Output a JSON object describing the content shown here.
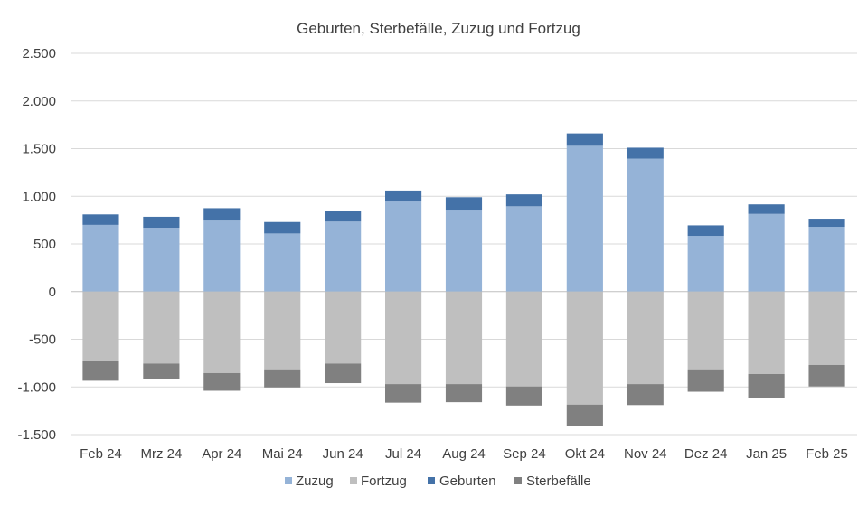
{
  "chart_data": {
    "type": "bar",
    "stacked": true,
    "title": "Geburten, Sterbefälle, Zuzug und Fortzug",
    "categories": [
      "Feb 24",
      "Mrz 24",
      "Apr 24",
      "Mai 24",
      "Jun 24",
      "Jul 24",
      "Aug 24",
      "Sep 24",
      "Okt 24",
      "Nov 24",
      "Dez 24",
      "Jan 25",
      "Feb 25"
    ],
    "series": [
      {
        "name": "Zuzug",
        "color": "#95b3d7",
        "values": [
          700,
          670,
          745,
          610,
          735,
          945,
          860,
          895,
          1530,
          1395,
          585,
          815,
          680
        ]
      },
      {
        "name": "Fortzug",
        "color": "#bfbfbf",
        "values": [
          -730,
          -755,
          -855,
          -815,
          -755,
          -970,
          -970,
          -995,
          -1185,
          -970,
          -815,
          -865,
          -770
        ]
      },
      {
        "name": "Geburten",
        "color": "#4472a8",
        "values": [
          110,
          115,
          130,
          120,
          115,
          115,
          130,
          125,
          130,
          115,
          110,
          100,
          85
        ]
      },
      {
        "name": "Sterbefälle",
        "color": "#808080",
        "values": [
          -205,
          -160,
          -185,
          -190,
          -205,
          -195,
          -190,
          -200,
          -225,
          -220,
          -235,
          -250,
          -225
        ]
      }
    ],
    "yticks": [
      2500,
      2000,
      1500,
      1000,
      500,
      0,
      -500,
      -1000,
      -1500
    ],
    "ytick_labels": [
      "2.500",
      "2.000",
      "1.500",
      "1.000",
      "500",
      "0",
      "-500",
      "-1.000",
      "-1.500"
    ],
    "ylim": [
      -1500,
      2500
    ],
    "grid": true,
    "legend_position": "bottom"
  }
}
